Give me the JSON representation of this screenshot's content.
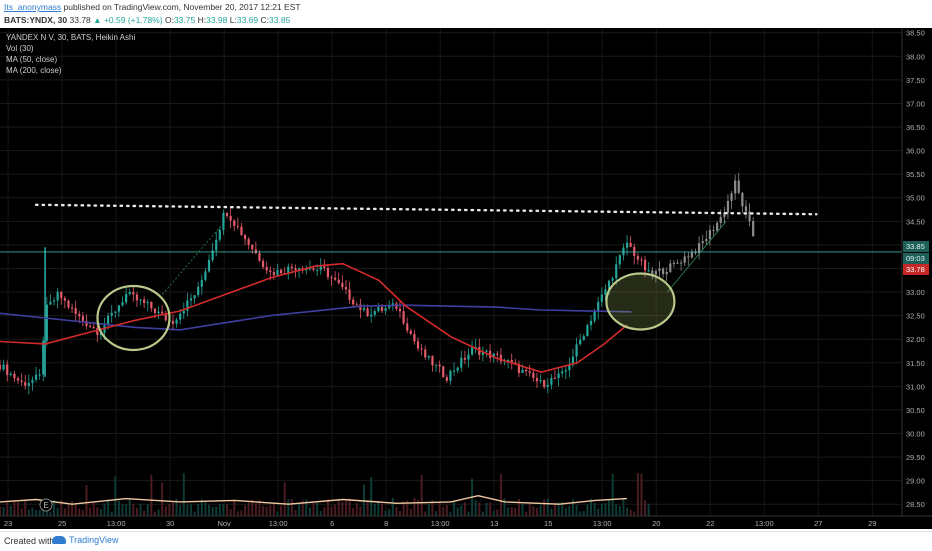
{
  "header": {
    "username": "Its_anonymass",
    "published_text": "published on TradingView.com, November 20, 2017 12:21 EST",
    "symbol": "BATS:YNDX, 30",
    "last": "33.78",
    "change": "+0.59 (+1.78%)",
    "o_label": "O:",
    "o_value": "33.75",
    "h_label": "H:",
    "h_value": "33.98",
    "l_label": "L:",
    "l_value": "33.69",
    "c_label": "C:",
    "c_value": "33.85"
  },
  "legend": {
    "title": "YANDEX N V, 30, BATS, Heikin Ashi",
    "vol": "Vol (30)",
    "ma50": "MA (50, close)",
    "ma200": "MA (200, close)"
  },
  "colors": {
    "background": "#000000",
    "up": "#26a69a",
    "down": "#e35b6a",
    "ma50": "#d42a2a",
    "ma200": "#3f3f9f",
    "vol_ma": "#f0c8a0",
    "circle": "#b9c98a",
    "dotted": "#e6e6e6",
    "hline": "#4fd1c5",
    "projection": "#8c8c8c"
  },
  "badges": {
    "price_1": "33.85",
    "price_2": "09:03",
    "price_3": "33.78"
  },
  "marker": "E",
  "chart_data": {
    "type": "candlestick",
    "style": "Heikin Ashi",
    "ylim": [
      28.25,
      38.6
    ],
    "y_ticks": [
      "38.50",
      "38.00",
      "37.50",
      "37.00",
      "36.50",
      "36.00",
      "35.50",
      "35.00",
      "34.50",
      "34.00",
      "33.50",
      "33.00",
      "32.50",
      "32.00",
      "31.50",
      "31.00",
      "30.50",
      "30.00",
      "29.50",
      "29.00",
      "28.50"
    ],
    "x_ticks": [
      "23",
      "25",
      "13:00",
      "30",
      "Nov",
      "13:00",
      "6",
      "8",
      "13:00",
      "13",
      "15",
      "13:00",
      "20",
      "22",
      "13:00",
      "27",
      "29"
    ],
    "resistance_level": 34.85,
    "current_level": 33.85,
    "price_path": [
      [
        0.0,
        31.45
      ],
      [
        0.025,
        31.05
      ],
      [
        0.045,
        31.2
      ],
      [
        0.05,
        32.6
      ],
      [
        0.065,
        32.95
      ],
      [
        0.085,
        32.5
      ],
      [
        0.11,
        32.15
      ],
      [
        0.14,
        32.95
      ],
      [
        0.165,
        32.7
      ],
      [
        0.19,
        32.35
      ],
      [
        0.22,
        33.05
      ],
      [
        0.25,
        34.75
      ],
      [
        0.275,
        34.05
      ],
      [
        0.3,
        33.4
      ],
      [
        0.33,
        33.55
      ],
      [
        0.36,
        33.45
      ],
      [
        0.385,
        32.95
      ],
      [
        0.405,
        32.55
      ],
      [
        0.44,
        32.7
      ],
      [
        0.465,
        31.75
      ],
      [
        0.495,
        31.2
      ],
      [
        0.525,
        31.8
      ],
      [
        0.56,
        31.55
      ],
      [
        0.6,
        31.05
      ],
      [
        0.625,
        31.25
      ],
      [
        0.65,
        32.25
      ],
      [
        0.675,
        33.2
      ],
      [
        0.695,
        34.05
      ],
      [
        0.72,
        33.35
      ],
      [
        0.745,
        33.55
      ],
      [
        0.775,
        33.95
      ],
      [
        0.8,
        34.6
      ],
      [
        0.815,
        35.3
      ],
      [
        0.835,
        34.2
      ]
    ],
    "ma50": [
      [
        0.0,
        31.95
      ],
      [
        0.05,
        31.9
      ],
      [
        0.1,
        32.15
      ],
      [
        0.15,
        32.4
      ],
      [
        0.2,
        32.6
      ],
      [
        0.25,
        32.95
      ],
      [
        0.3,
        33.3
      ],
      [
        0.35,
        33.55
      ],
      [
        0.38,
        33.6
      ],
      [
        0.42,
        33.25
      ],
      [
        0.45,
        32.7
      ],
      [
        0.5,
        32.05
      ],
      [
        0.55,
        31.6
      ],
      [
        0.6,
        31.3
      ],
      [
        0.64,
        31.5
      ],
      [
        0.67,
        31.9
      ],
      [
        0.695,
        32.3
      ]
    ],
    "ma200": [
      [
        0.0,
        32.55
      ],
      [
        0.05,
        32.45
      ],
      [
        0.1,
        32.35
      ],
      [
        0.15,
        32.25
      ],
      [
        0.2,
        32.2
      ],
      [
        0.25,
        32.35
      ],
      [
        0.3,
        32.5
      ],
      [
        0.35,
        32.6
      ],
      [
        0.4,
        32.7
      ],
      [
        0.45,
        32.72
      ],
      [
        0.5,
        32.7
      ],
      [
        0.55,
        32.68
      ],
      [
        0.6,
        32.62
      ],
      [
        0.65,
        32.6
      ],
      [
        0.7,
        32.58
      ]
    ],
    "volume_ma": [
      [
        0.0,
        28.55
      ],
      [
        0.04,
        28.6
      ],
      [
        0.08,
        28.5
      ],
      [
        0.14,
        28.62
      ],
      [
        0.2,
        28.55
      ],
      [
        0.26,
        28.58
      ],
      [
        0.32,
        28.5
      ],
      [
        0.38,
        28.6
      ],
      [
        0.44,
        28.52
      ],
      [
        0.5,
        28.55
      ],
      [
        0.53,
        28.68
      ],
      [
        0.56,
        28.55
      ],
      [
        0.62,
        28.5
      ],
      [
        0.66,
        28.58
      ],
      [
        0.695,
        28.62
      ]
    ]
  }
}
